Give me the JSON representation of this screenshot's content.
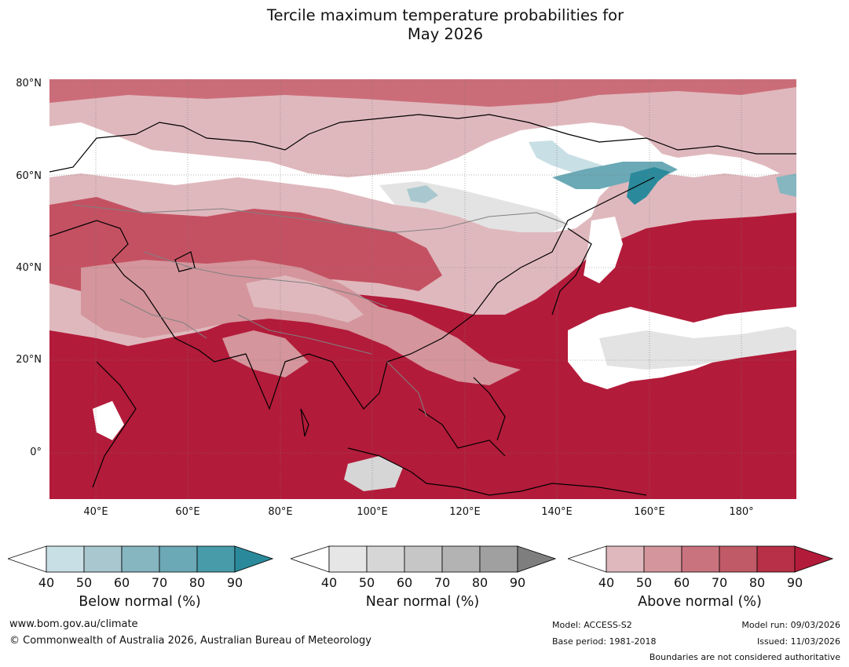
{
  "title": {
    "line1": "Tercile maximum temperature probabilities for",
    "line2": "May 2026"
  },
  "map": {
    "lat_labels": [
      "80°N",
      "60°N",
      "40°N",
      "20°N",
      "0°"
    ],
    "lon_labels": [
      "40°E",
      "60°E",
      "80°E",
      "100°E",
      "120°E",
      "140°E",
      "160°E",
      "180°"
    ],
    "colors": {
      "ocean_above": "#b31b3a",
      "above_80": "#b83047",
      "above_70": "#c45162",
      "above_60": "#cb6d79",
      "above_50": "#d4959c",
      "above_40": "#dfb8bd",
      "near_40": "#e3e3e3",
      "near_50": "#d6d6d6",
      "below_40": "#c8dfe5",
      "below_50": "#a9c7ce",
      "below_60": "#86b6c0",
      "below_70": "#6aa9b5",
      "below_80": "#489ba9",
      "below_90": "#2a8a9c",
      "coast": "#000000",
      "border": "#808080"
    }
  },
  "legends": [
    {
      "title": "Below normal (%)",
      "ticks": [
        "40",
        "50",
        "60",
        "70",
        "80",
        "90"
      ],
      "colors": [
        "#c8dfe5",
        "#a9c7ce",
        "#86b6c0",
        "#6aa9b5",
        "#489ba9",
        "#2a8a9c"
      ]
    },
    {
      "title": "Near normal (%)",
      "ticks": [
        "40",
        "50",
        "60",
        "70",
        "80",
        "90"
      ],
      "colors": [
        "#e6e6e6",
        "#d6d6d6",
        "#c6c6c6",
        "#b3b3b3",
        "#a0a0a0",
        "#7e7e7e"
      ]
    },
    {
      "title": "Above normal (%)",
      "ticks": [
        "40",
        "50",
        "60",
        "70",
        "80",
        "90"
      ],
      "colors": [
        "#dfb8bd",
        "#d4959c",
        "#c9737e",
        "#c05a67",
        "#b83047",
        "#b31b3a"
      ]
    }
  ],
  "footer": {
    "website": "www.bom.gov.au/climate",
    "copyright": "© Commonwealth of Australia 2026, Australian Bureau of Meteorology",
    "model": "Model: ACCESS-S2",
    "base_period": "Base period: 1981-2018",
    "model_run": "Model run: 09/03/2026",
    "issued": "Issued: 11/03/2026",
    "disclaimer": "Boundaries are not considered authoritative"
  }
}
